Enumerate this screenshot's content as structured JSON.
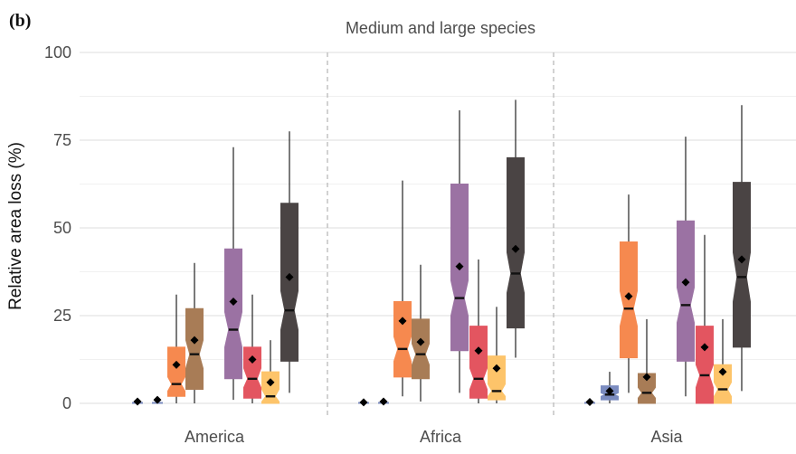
{
  "chart_data": {
    "type": "boxplot",
    "panel_label": "(b)",
    "title": "Medium and large species",
    "ylabel": "Relative area loss (%)",
    "ylim": [
      0,
      100
    ],
    "yticks": [
      0,
      25,
      50,
      75,
      100
    ],
    "grid": true,
    "legend": "none",
    "box_colors": [
      "#7b8cc0",
      "#f6894f",
      "#a87c56",
      "#9b72a3",
      "#e35560",
      "#fdc46a",
      "#4a4444"
    ],
    "groups": [
      {
        "label": "America",
        "boxes": [
          {
            "color": "#7b8cc0",
            "q1": 0,
            "median": 0,
            "q3": 0,
            "whisker_low": 0,
            "whisker_high": 0,
            "mean": 0.5,
            "mean_only": true
          },
          {
            "color": "#7b8cc0",
            "q1": 0.3,
            "median": 0.6,
            "q3": 1,
            "whisker_low": 0,
            "whisker_high": 1.5,
            "mean": 1,
            "mean_only": true
          },
          {
            "color": "#f6894f",
            "q1": 2,
            "median": 5.5,
            "q3": 16,
            "notch_low": 3.5,
            "notch_high": 7.5,
            "whisker_low": 0,
            "whisker_high": 31,
            "mean": 11
          },
          {
            "color": "#a87c56",
            "q1": 4,
            "median": 14,
            "q3": 27,
            "notch_low": 10,
            "notch_high": 18,
            "whisker_low": 0,
            "whisker_high": 40,
            "mean": 18
          },
          {
            "color": "#9b72a3",
            "q1": 7,
            "median": 21,
            "q3": 44,
            "notch_low": 16,
            "notch_high": 26,
            "whisker_low": 1,
            "whisker_high": 73,
            "mean": 29
          },
          {
            "color": "#e35560",
            "q1": 1.5,
            "median": 7,
            "q3": 16,
            "notch_low": 4.5,
            "notch_high": 10,
            "whisker_low": 0,
            "whisker_high": 31,
            "mean": 12.5
          },
          {
            "color": "#fdc46a",
            "q1": 0,
            "median": 2,
            "q3": 9,
            "notch_low": 0.5,
            "notch_high": 4,
            "whisker_low": 0,
            "whisker_high": 18,
            "mean": 6
          },
          {
            "color": "#4a4444",
            "q1": 12,
            "median": 26.5,
            "q3": 57,
            "notch_low": 21,
            "notch_high": 32,
            "whisker_low": 3,
            "whisker_high": 77.5,
            "mean": 36
          }
        ]
      },
      {
        "label": "Africa",
        "boxes": [
          {
            "color": "#7b8cc0",
            "q1": 0,
            "median": 0,
            "q3": 0,
            "whisker_low": 0,
            "whisker_high": 0,
            "mean": 0.3,
            "mean_only": true
          },
          {
            "color": "#7b8cc0",
            "q1": 0,
            "median": 0.2,
            "q3": 0.6,
            "whisker_low": 0,
            "whisker_high": 1,
            "mean": 0.5,
            "mean_only": true
          },
          {
            "color": "#f6894f",
            "q1": 7.5,
            "median": 15.5,
            "q3": 29,
            "notch_low": 12,
            "notch_high": 19,
            "whisker_low": 2,
            "whisker_high": 63.5,
            "mean": 23.5
          },
          {
            "color": "#a87c56",
            "q1": 7,
            "median": 14,
            "q3": 24,
            "notch_low": 11,
            "notch_high": 17,
            "whisker_low": 0.5,
            "whisker_high": 39.5,
            "mean": 17.5
          },
          {
            "color": "#9b72a3",
            "q1": 15,
            "median": 30,
            "q3": 62.5,
            "notch_low": 25,
            "notch_high": 35,
            "whisker_low": 3,
            "whisker_high": 83.5,
            "mean": 39
          },
          {
            "color": "#e35560",
            "q1": 1.5,
            "median": 7,
            "q3": 22,
            "notch_low": 4,
            "notch_high": 10,
            "whisker_low": 0,
            "whisker_high": 41,
            "mean": 15
          },
          {
            "color": "#fdc46a",
            "q1": 1,
            "median": 3.5,
            "q3": 13.5,
            "notch_low": 2,
            "notch_high": 5.5,
            "whisker_low": 0,
            "whisker_high": 27.5,
            "mean": 10
          },
          {
            "color": "#4a4444",
            "q1": 21.5,
            "median": 37,
            "q3": 70,
            "notch_low": 31.5,
            "notch_high": 43,
            "whisker_low": 13,
            "whisker_high": 86.5,
            "mean": 44
          }
        ]
      },
      {
        "label": "Asia",
        "boxes": [
          {
            "color": "#7b8cc0",
            "q1": 0,
            "median": 0,
            "q3": 0,
            "whisker_low": 0,
            "whisker_high": 0,
            "mean": 0.4,
            "mean_only": true
          },
          {
            "color": "#7b8cc0",
            "q1": 1,
            "median": 2.5,
            "q3": 5,
            "notch_low": 2,
            "notch_high": 3,
            "whisker_low": 0,
            "whisker_high": 9,
            "mean": 3.5
          },
          {
            "color": "#f6894f",
            "q1": 13,
            "median": 27,
            "q3": 46,
            "notch_low": 22,
            "notch_high": 32,
            "whisker_low": 3,
            "whisker_high": 59.5,
            "mean": 30.5
          },
          {
            "color": "#a87c56",
            "q1": 0,
            "median": 3,
            "q3": 8.5,
            "notch_low": 1.5,
            "notch_high": 4.5,
            "whisker_low": 0,
            "whisker_high": 24,
            "mean": 7.5
          },
          {
            "color": "#9b72a3",
            "q1": 12,
            "median": 28,
            "q3": 52,
            "notch_low": 23,
            "notch_high": 33,
            "whisker_low": 2,
            "whisker_high": 76,
            "mean": 34.5
          },
          {
            "color": "#e35560",
            "q1": 0,
            "median": 8,
            "q3": 22,
            "notch_low": 4.5,
            "notch_high": 11,
            "whisker_low": 0,
            "whisker_high": 48,
            "mean": 16
          },
          {
            "color": "#fdc46a",
            "q1": 0,
            "median": 4,
            "q3": 11,
            "notch_low": 2,
            "notch_high": 6,
            "whisker_low": 0,
            "whisker_high": 24,
            "mean": 9
          },
          {
            "color": "#4a4444",
            "q1": 16,
            "median": 36,
            "q3": 63,
            "notch_low": 29,
            "notch_high": 43,
            "whisker_low": 3.5,
            "whisker_high": 85,
            "mean": 41
          }
        ]
      }
    ]
  }
}
